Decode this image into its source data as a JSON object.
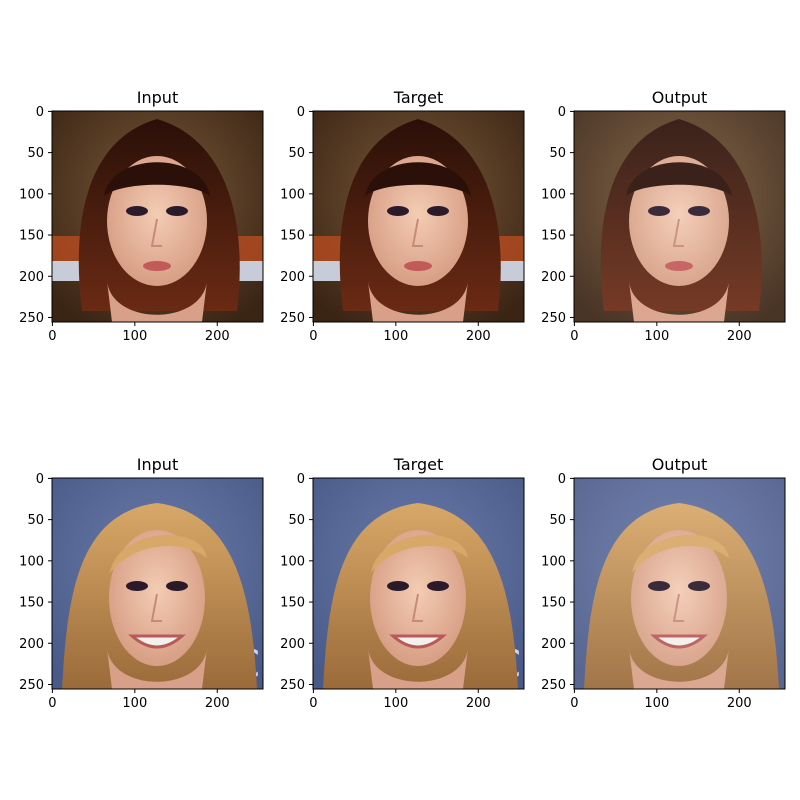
{
  "figure": {
    "panels": [
      {
        "title": "Input",
        "row": 0,
        "col": 0,
        "scene": "portrait-dark-bob"
      },
      {
        "title": "Target",
        "row": 0,
        "col": 1,
        "scene": "portrait-dark-bob"
      },
      {
        "title": "Output",
        "row": 0,
        "col": 2,
        "scene": "portrait-dark-bob-generated"
      },
      {
        "title": "Input",
        "row": 1,
        "col": 0,
        "scene": "portrait-blonde"
      },
      {
        "title": "Target",
        "row": 1,
        "col": 1,
        "scene": "portrait-blonde"
      },
      {
        "title": "Output",
        "row": 1,
        "col": 2,
        "scene": "portrait-blonde-generated"
      }
    ],
    "x_ticks": [
      "0",
      "100",
      "200"
    ],
    "y_ticks": [
      "0",
      "50",
      "100",
      "150",
      "200",
      "250"
    ],
    "x_tick_values": [
      0,
      100,
      200
    ],
    "y_tick_values": [
      0,
      50,
      100,
      150,
      200,
      250
    ],
    "pixel_extent": 256
  },
  "colors": {
    "row0_background": "#5a3a22",
    "row0_hair": "#3a1a10",
    "row0_skin": "#e8b8a0",
    "row0_wicker": "#b04a20",
    "row1_background": "#5a6a9a",
    "row1_hair": "#c08a50",
    "row1_skin": "#e8b8a0"
  }
}
